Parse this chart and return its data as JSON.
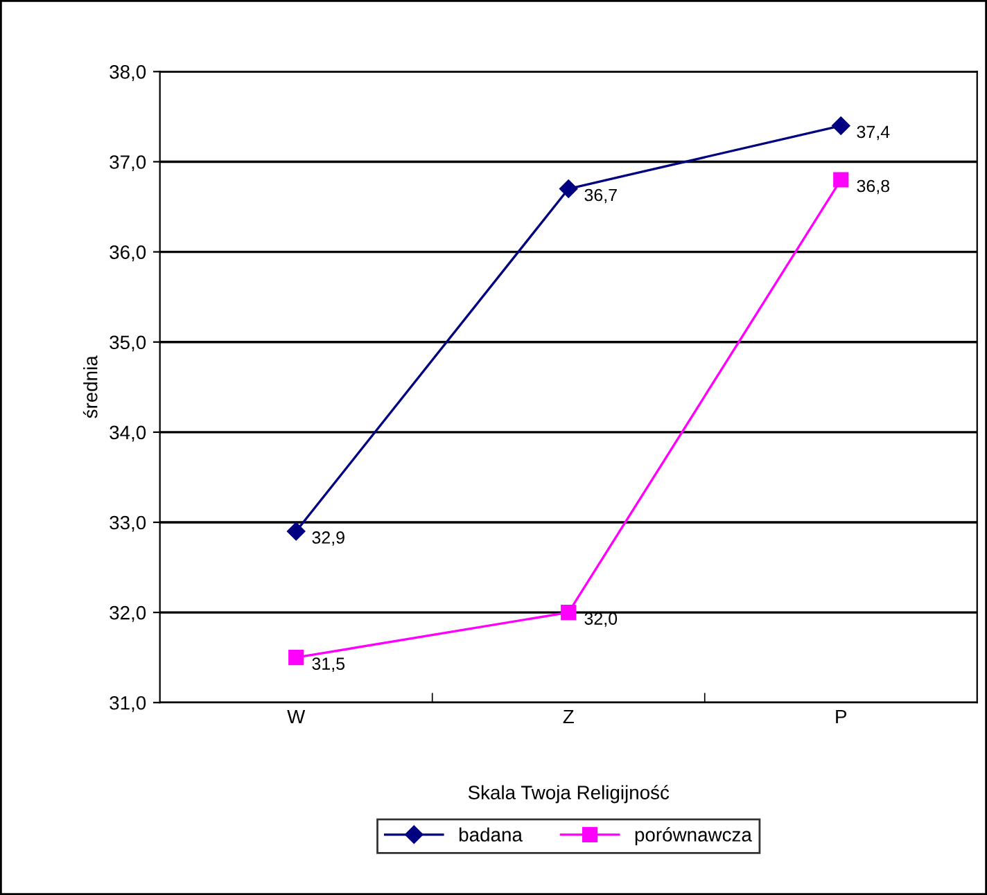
{
  "chart_data": {
    "type": "line",
    "xlabel": "Skala Twoja Religijność",
    "ylabel": "średnia",
    "categories": [
      "W",
      "Z",
      "P"
    ],
    "series": [
      {
        "name": "badana",
        "color": "#000080",
        "marker": "diamond",
        "values": [
          32.9,
          36.7,
          37.4
        ],
        "value_labels": [
          "32,9",
          "36,7",
          "37,4"
        ]
      },
      {
        "name": "porównawcza",
        "color": "#ff00ff",
        "marker": "square",
        "values": [
          31.5,
          32.0,
          36.8
        ],
        "value_labels": [
          "31,5",
          "32,0",
          "36,8"
        ]
      }
    ],
    "ylim": [
      31,
      38
    ],
    "yticks": [
      {
        "value": 31,
        "label": "31,0"
      },
      {
        "value": 32,
        "label": "32,0"
      },
      {
        "value": 33,
        "label": "33,0"
      },
      {
        "value": 34,
        "label": "34,0"
      },
      {
        "value": 35,
        "label": "35,0"
      },
      {
        "value": 36,
        "label": "36,0"
      },
      {
        "value": 37,
        "label": "37,0"
      },
      {
        "value": 38,
        "label": "38,0"
      }
    ],
    "grid": "y",
    "legend": "bottom",
    "line_style": "solid"
  }
}
